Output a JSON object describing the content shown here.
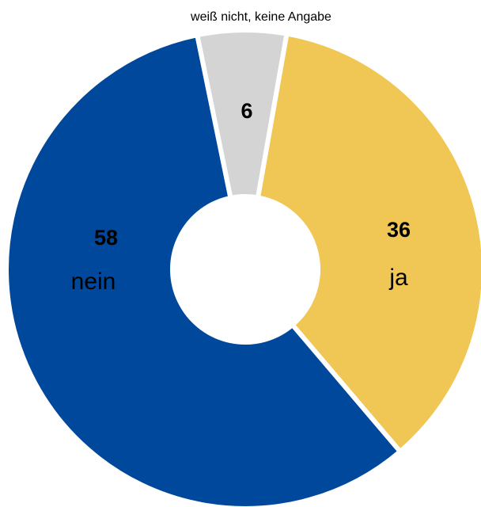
{
  "chart_data": {
    "type": "pie",
    "categories": [
      "ja",
      "nein",
      "weiß nicht, keine Angabe"
    ],
    "values": [
      36,
      58,
      6
    ],
    "colors": [
      "#f0c654",
      "#00489c",
      "#d4d4d4"
    ]
  }
}
